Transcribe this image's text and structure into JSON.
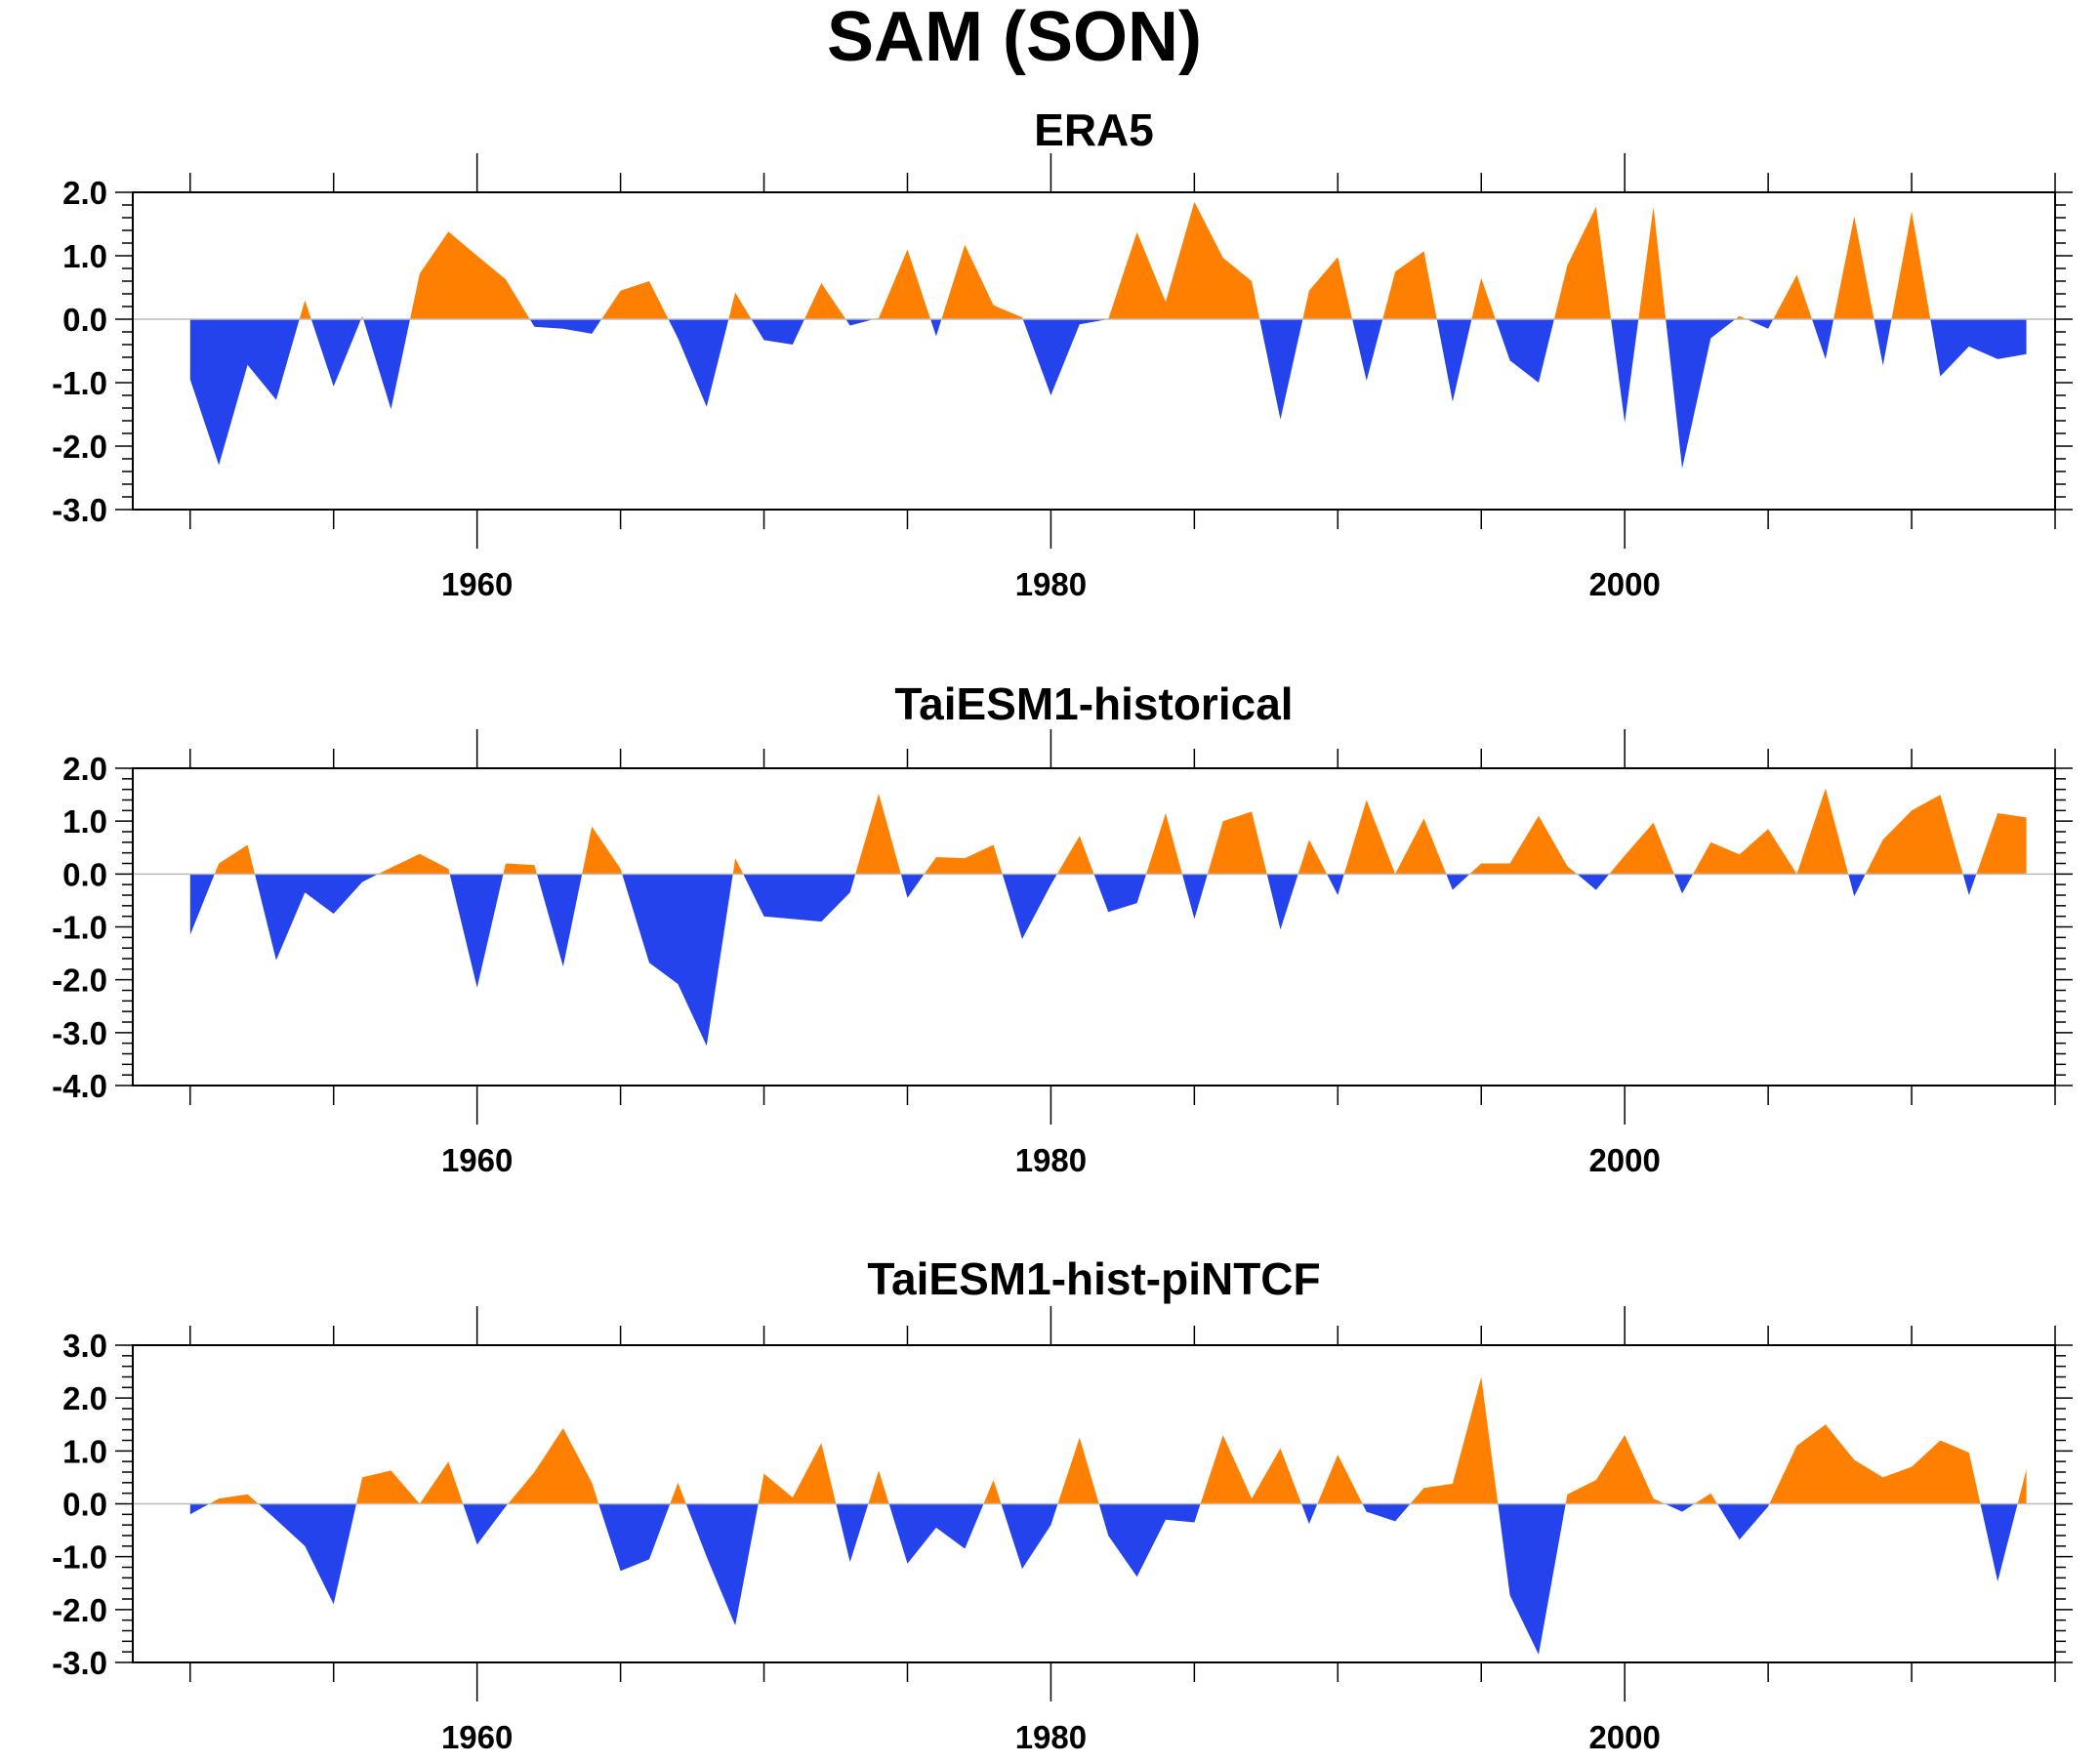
{
  "figure": {
    "title": "SAM (SON)"
  },
  "colors": {
    "positive": "#FF8000",
    "negative": "#2443EC",
    "axis": "#000000",
    "zero_line": "#BBBBBB"
  },
  "chart_data": [
    {
      "type": "area",
      "title": "ERA5",
      "xlabel": "",
      "ylabel": "",
      "xlim": [
        1948,
        2015
      ],
      "ylim": [
        -3.0,
        2.0
      ],
      "yticks": [
        -3.0,
        -2.0,
        -1.0,
        0.0,
        1.0,
        2.0
      ],
      "ytick_labels": [
        "-3.0",
        "-2.0",
        "-1.0",
        "0.0",
        "1.0",
        "2.0"
      ],
      "xticks": [
        1960,
        1980,
        2000
      ],
      "xtick_labels": [
        "1960",
        "1980",
        "2000"
      ],
      "grid": false,
      "x_start": 1950,
      "values": [
        -0.95,
        -2.3,
        -0.72,
        -1.27,
        0.3,
        -1.06,
        0.05,
        -1.42,
        0.72,
        1.38,
        1.0,
        0.63,
        -0.12,
        -0.15,
        -0.23,
        0.45,
        0.6,
        -0.3,
        -1.38,
        0.42,
        -0.33,
        -0.4,
        0.57,
        -0.1,
        0.02,
        1.1,
        -0.27,
        1.17,
        0.22,
        0.03,
        -1.2,
        -0.08,
        0.0,
        1.37,
        0.27,
        1.85,
        0.97,
        0.6,
        -1.58,
        0.45,
        0.98,
        -0.97,
        0.75,
        1.07,
        -1.3,
        0.65,
        -0.65,
        -1.0,
        0.85,
        1.77,
        -1.63,
        1.77,
        -2.35,
        -0.3,
        0.05,
        -0.15,
        0.7,
        -0.63,
        1.62,
        -0.73,
        1.7,
        -0.9,
        -0.43,
        -0.63,
        -0.55
      ]
    },
    {
      "type": "area",
      "title": "TaiESM1-historical",
      "xlabel": "",
      "ylabel": "",
      "xlim": [
        1948,
        2015
      ],
      "ylim": [
        -4.0,
        2.0
      ],
      "yticks": [
        -4.0,
        -3.0,
        -2.0,
        -1.0,
        0.0,
        1.0,
        2.0
      ],
      "ytick_labels": [
        "-4.0",
        "-3.0",
        "-2.0",
        "-1.0",
        "0.0",
        "1.0",
        "2.0"
      ],
      "xticks": [
        1960,
        1980,
        2000
      ],
      "xtick_labels": [
        "1960",
        "1980",
        "2000"
      ],
      "grid": false,
      "x_start": 1950,
      "values": [
        -1.15,
        0.2,
        0.55,
        -1.63,
        -0.35,
        -0.75,
        -0.15,
        0.12,
        0.38,
        0.1,
        -2.15,
        0.2,
        0.17,
        -1.75,
        0.9,
        0.1,
        -1.68,
        -2.08,
        -3.25,
        0.3,
        -0.8,
        -0.85,
        -0.9,
        -0.35,
        1.52,
        -0.45,
        0.32,
        0.3,
        0.55,
        -1.23,
        -0.2,
        0.72,
        -0.72,
        -0.55,
        1.15,
        -0.85,
        1.0,
        1.18,
        -1.05,
        0.65,
        -0.4,
        1.4,
        0.0,
        1.05,
        -0.3,
        0.2,
        0.2,
        1.1,
        0.15,
        -0.3,
        0.35,
        0.97,
        -0.37,
        0.6,
        0.37,
        0.85,
        0.0,
        1.62,
        -0.42,
        0.65,
        1.2,
        1.5,
        -0.4,
        1.15,
        1.07
      ]
    },
    {
      "type": "area",
      "title": "TaiESM1-hist-piNTCF",
      "xlabel": "",
      "ylabel": "",
      "xlim": [
        1948,
        2015
      ],
      "ylim": [
        -3.0,
        3.0
      ],
      "yticks": [
        -3.0,
        -2.0,
        -1.0,
        0.0,
        1.0,
        2.0,
        3.0
      ],
      "ytick_labels": [
        "-3.0",
        "-2.0",
        "-1.0",
        "0.0",
        "1.0",
        "2.0",
        "3.0"
      ],
      "xticks": [
        1960,
        1980,
        2000
      ],
      "xtick_labels": [
        "1960",
        "1980",
        "2000"
      ],
      "grid": false,
      "x_start": 1950,
      "values": [
        -0.2,
        0.1,
        0.18,
        -0.3,
        -0.8,
        -1.9,
        0.5,
        0.63,
        0.0,
        0.8,
        -0.77,
        -0.05,
        0.6,
        1.43,
        0.4,
        -1.27,
        -1.05,
        0.4,
        -1.0,
        -2.3,
        0.57,
        0.12,
        1.15,
        -1.1,
        0.63,
        -1.13,
        -0.45,
        -0.85,
        0.45,
        -1.23,
        -0.4,
        1.25,
        -0.6,
        -1.38,
        -0.3,
        -0.35,
        1.3,
        0.1,
        1.05,
        -0.38,
        0.93,
        -0.15,
        -0.33,
        0.3,
        0.38,
        2.4,
        -1.73,
        -2.85,
        0.18,
        0.45,
        1.3,
        0.1,
        -0.15,
        0.2,
        -0.68,
        -0.05,
        1.1,
        1.5,
        0.83,
        0.5,
        0.7,
        1.2,
        0.97,
        -1.47,
        0.65
      ]
    }
  ]
}
